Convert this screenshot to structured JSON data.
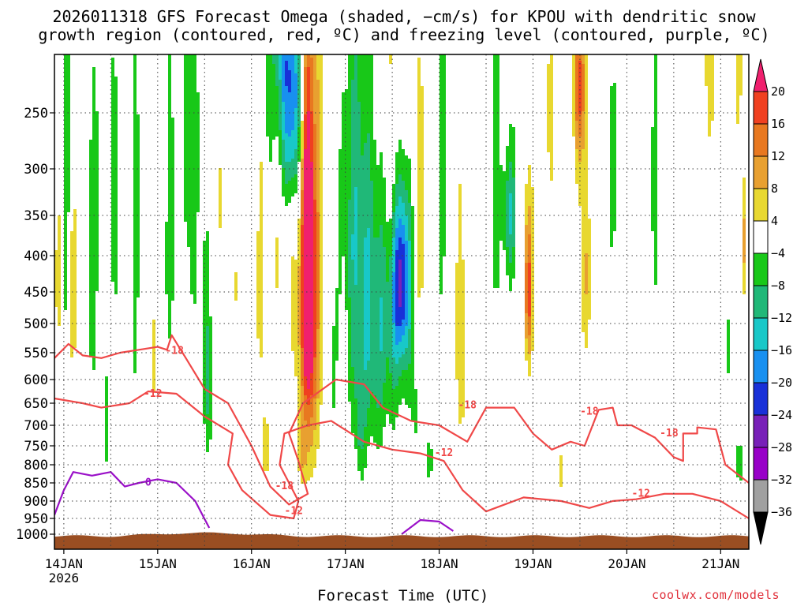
{
  "chart_data": {
    "type": "heatmap",
    "title_line1": "2026011318 GFS Forecast Omega (shaded, −cm/s) for KPOU with dendritic snow",
    "title_line2": "growth region (contoured, red, ºC) and freezing level (contoured, purple, ºC)",
    "xlabel": "Forecast Time (UTC)",
    "credit": "coolwx.com/models",
    "x_ticks": [
      "14JAN",
      "15JAN",
      "16JAN",
      "17JAN",
      "18JAN",
      "19JAN",
      "20JAN",
      "21JAN"
    ],
    "x_year": "2026",
    "x_range_days": [
      13.9,
      21.3
    ],
    "y_ticks": [
      250,
      300,
      350,
      400,
      450,
      500,
      550,
      600,
      650,
      700,
      750,
      800,
      850,
      900,
      950,
      1000
    ],
    "y_labels": [
      "250",
      "300",
      "350",
      "400",
      "450",
      "500",
      "550",
      "600",
      "650",
      "700",
      "750",
      "800",
      "850",
      "900",
      "950",
      "1000"
    ],
    "colorbar": {
      "labels": [
        "20",
        "16",
        "12",
        "8",
        "4",
        "−4",
        "−8",
        "−12",
        "−16",
        "−20",
        "−24",
        "−28",
        "−32",
        "−36"
      ],
      "values": [
        20,
        16,
        12,
        8,
        4,
        -4,
        -8,
        -12,
        -16,
        -20,
        -24,
        -28,
        -32,
        -36
      ],
      "colors": [
        "#f0206e",
        "#f04020",
        "#e87820",
        "#e8a030",
        "#e8d830",
        "#ffffff",
        "#18c818",
        "#20b878",
        "#18c8c8",
        "#1890f0",
        "#1830d8",
        "#7820b8",
        "#9800c8",
        "#a0a0a0",
        "#000000"
      ]
    },
    "contour_labels": {
      "dendritic": [
        "-18",
        "-12",
        "-18",
        "-12",
        "-18",
        "-12",
        "-18",
        "-18",
        "-12"
      ],
      "freezing": [
        "0"
      ]
    },
    "colors": {
      "dendritic": "#f04848",
      "freezing": "#9a10c8",
      "ground": "#9a4e22",
      "gridline": "#404040"
    }
  }
}
